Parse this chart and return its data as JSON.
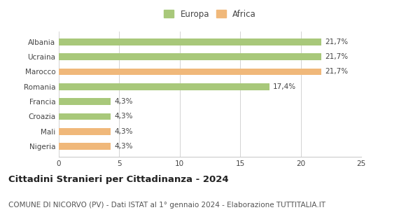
{
  "categories": [
    "Albania",
    "Ucraina",
    "Marocco",
    "Romania",
    "Francia",
    "Croazia",
    "Mali",
    "Nigeria"
  ],
  "values": [
    21.7,
    21.7,
    21.7,
    17.4,
    4.3,
    4.3,
    4.3,
    4.3
  ],
  "colors": [
    "#a8c87a",
    "#a8c87a",
    "#f0b87a",
    "#a8c87a",
    "#a8c87a",
    "#a8c87a",
    "#f0b87a",
    "#f0b87a"
  ],
  "labels": [
    "21,7%",
    "21,7%",
    "21,7%",
    "17,4%",
    "4,3%",
    "4,3%",
    "4,3%",
    "4,3%"
  ],
  "legend_labels": [
    "Europa",
    "Africa"
  ],
  "legend_colors": [
    "#a8c87a",
    "#f0b87a"
  ],
  "xlim": [
    0,
    25
  ],
  "xticks": [
    0,
    5,
    10,
    15,
    20,
    25
  ],
  "title": "Cittadini Stranieri per Cittadinanza - 2024",
  "subtitle": "COMUNE DI NICORVO (PV) - Dati ISTAT al 1° gennaio 2024 - Elaborazione TUTTITALIA.IT",
  "title_fontsize": 9.5,
  "subtitle_fontsize": 7.5,
  "bar_height": 0.45,
  "background_color": "#ffffff",
  "grid_color": "#cccccc",
  "label_fontsize": 7.5,
  "tick_fontsize": 7.5
}
